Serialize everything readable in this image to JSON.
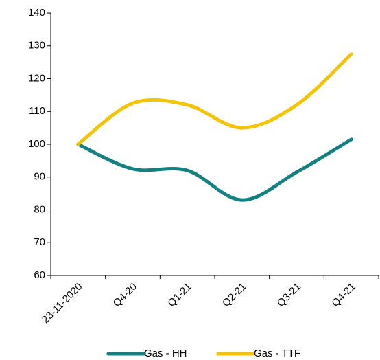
{
  "chart_data": {
    "type": "line",
    "categories": [
      "23-11-2020",
      "Q4-20",
      "Q1-21",
      "Q2-21",
      "Q3-21",
      "Q4-21"
    ],
    "series": [
      {
        "name": "Gas - HH",
        "color": "#138182",
        "values": [
          100,
          92.5,
          92,
          83,
          91.5,
          101.5
        ]
      },
      {
        "name": "Gas - TTF",
        "color": "#f5c400",
        "values": [
          100,
          112.5,
          112,
          105,
          112,
          127.5
        ]
      }
    ],
    "ylim": [
      60,
      140
    ],
    "yticks": [
      60,
      70,
      80,
      90,
      100,
      110,
      120,
      130,
      140
    ],
    "smooth": true,
    "legend": "bottom"
  }
}
